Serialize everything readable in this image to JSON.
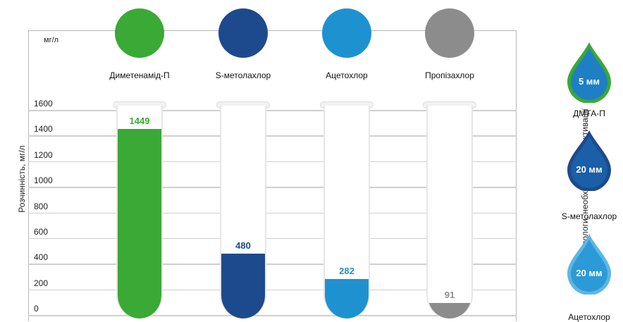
{
  "chart_data": {
    "type": "bar",
    "unit_label": "мг/л",
    "ylabel": "Розчинність, мг/л",
    "ylim": [
      0,
      1600
    ],
    "yticks": [
      1600,
      1400,
      1200,
      1000,
      800,
      600,
      400,
      200,
      0
    ],
    "categories": [
      "Диметенамід-П",
      "S-метолахлор",
      "Ацетохлор",
      "Пропізахлор"
    ],
    "values": [
      1449,
      480,
      282,
      91
    ],
    "colors": [
      "#3aa935",
      "#1d4a8c",
      "#1e92d0",
      "#8c8c8c"
    ],
    "value_label_colors": [
      "#3aa935",
      "#1d4a8c",
      "#1e92d0",
      "#8c8c8c"
    ],
    "grid": true
  },
  "side_panel": {
    "title": "Мінімум вологи, необхідної для реактивації",
    "drops": [
      {
        "value": "5 мм",
        "caption": "ДМТА-П"
      },
      {
        "value": "20 мм",
        "caption": "S-метолахлор"
      },
      {
        "value": "20 мм",
        "caption": "Ацетохлор"
      }
    ]
  }
}
